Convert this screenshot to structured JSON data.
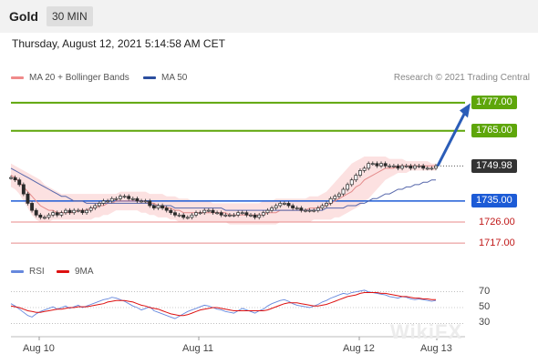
{
  "header": {
    "instrument": "Gold",
    "timeframe": "30 MIN"
  },
  "timestamp": "Thursday, August 12, 2021 5:14:58 AM CET",
  "legend": {
    "bollinger": "MA 20 + Bollinger Bands",
    "ma50": "MA 50",
    "credit": "Research © 2021 Trading Central"
  },
  "rsi_legend": {
    "rsi": "RSI",
    "ma9": "9MA"
  },
  "colors": {
    "resistance": "#5ea60a",
    "support": "#1c5bd6",
    "minor_support": "#e88a8a",
    "ma50": "#5566aa",
    "ma20": "#e48a8a",
    "bands": "#fcdcdc",
    "arrow": "#2b5db8",
    "rsi": "#6688dd",
    "rsi_ma": "#dd1111",
    "candle_up": "#2a2a2a",
    "candle_down": "#2a2a2a"
  },
  "watermark": "WikiFX",
  "chart_data": [
    {
      "type": "line",
      "name": "price",
      "ylim": [
        1712,
        1782
      ],
      "x_axis_labels": [
        "Aug 10",
        "Aug 11",
        "Aug 12",
        "Aug 13"
      ],
      "levels": [
        {
          "value": 1777.0,
          "label": "1777.00",
          "kind": "resistance"
        },
        {
          "value": 1765.0,
          "label": "1765.00",
          "kind": "resistance"
        },
        {
          "value": 1749.98,
          "label": "1749.98",
          "kind": "last"
        },
        {
          "value": 1735.0,
          "label": "1735.00",
          "kind": "support"
        },
        {
          "value": 1726.0,
          "label": "1726.00",
          "kind": "minor-support"
        },
        {
          "value": 1717.0,
          "label": "1717.00",
          "kind": "minor-support"
        }
      ],
      "close": [
        1745,
        1744,
        1742,
        1738,
        1734,
        1731,
        1729,
        1728,
        1728,
        1729,
        1730,
        1729,
        1730,
        1731,
        1730,
        1731,
        1731,
        1730,
        1731,
        1732,
        1733,
        1734,
        1735,
        1735,
        1736,
        1736,
        1737,
        1737,
        1736,
        1736,
        1735,
        1735,
        1735,
        1733,
        1732,
        1733,
        1732,
        1731,
        1730,
        1729,
        1729,
        1728,
        1728,
        1729,
        1730,
        1730,
        1731,
        1731,
        1730,
        1730,
        1729,
        1729,
        1729,
        1729,
        1730,
        1730,
        1729,
        1729,
        1728,
        1729,
        1730,
        1731,
        1732,
        1733,
        1734,
        1734,
        1733,
        1732,
        1732,
        1731,
        1731,
        1731,
        1731,
        1732,
        1733,
        1734,
        1736,
        1737,
        1738,
        1740,
        1742,
        1744,
        1746,
        1748,
        1749,
        1751,
        1751,
        1750,
        1751,
        1750,
        1750,
        1750,
        1749,
        1750,
        1750,
        1749,
        1750,
        1750,
        1749,
        1749,
        1749,
        1750
      ],
      "ma20": [
        1746,
        1745,
        1743,
        1741,
        1739,
        1737,
        1735,
        1733,
        1732,
        1731,
        1731,
        1730,
        1730,
        1730,
        1730,
        1730,
        1731,
        1731,
        1731,
        1732,
        1732,
        1733,
        1733,
        1734,
        1734,
        1735,
        1735,
        1735,
        1735,
        1735,
        1735,
        1735,
        1735,
        1734,
        1734,
        1733,
        1733,
        1732,
        1732,
        1731,
        1731,
        1730,
        1730,
        1730,
        1730,
        1730,
        1730,
        1730,
        1730,
        1730,
        1730,
        1730,
        1729,
        1729,
        1729,
        1729,
        1729,
        1729,
        1729,
        1729,
        1729,
        1730,
        1730,
        1730,
        1731,
        1731,
        1731,
        1731,
        1731,
        1731,
        1731,
        1732,
        1732,
        1732,
        1733,
        1733,
        1734,
        1735,
        1736,
        1737,
        1738,
        1739,
        1741,
        1742,
        1744,
        1745,
        1746,
        1747,
        1748,
        1749,
        1749,
        1749,
        1750,
        1750,
        1750,
        1750,
        1750,
        1750,
        1750,
        1750,
        1750,
        1750
      ],
      "ma50": [
        1749,
        1748,
        1747,
        1746,
        1745,
        1744,
        1743,
        1742,
        1741,
        1740,
        1739,
        1738,
        1737,
        1737,
        1736,
        1735,
        1735,
        1735,
        1734,
        1734,
        1734,
        1734,
        1734,
        1734,
        1734,
        1734,
        1734,
        1734,
        1734,
        1734,
        1734,
        1734,
        1734,
        1734,
        1733,
        1733,
        1733,
        1733,
        1733,
        1732,
        1732,
        1732,
        1732,
        1732,
        1732,
        1732,
        1732,
        1732,
        1732,
        1732,
        1732,
        1731,
        1731,
        1731,
        1731,
        1731,
        1731,
        1731,
        1731,
        1731,
        1731,
        1731,
        1731,
        1731,
        1731,
        1731,
        1731,
        1731,
        1731,
        1731,
        1731,
        1731,
        1731,
        1731,
        1731,
        1732,
        1732,
        1732,
        1732,
        1732,
        1733,
        1733,
        1733,
        1734,
        1734,
        1735,
        1736,
        1736,
        1737,
        1738,
        1738,
        1739,
        1740,
        1740,
        1741,
        1741,
        1742,
        1742,
        1743,
        1743,
        1744,
        1744
      ],
      "upper_band": [
        1751,
        1750,
        1749,
        1748,
        1747,
        1746,
        1745,
        1744,
        1742,
        1741,
        1740,
        1739,
        1738,
        1738,
        1738,
        1738,
        1738,
        1738,
        1738,
        1738,
        1738,
        1738,
        1738,
        1738,
        1738,
        1738,
        1739,
        1739,
        1739,
        1739,
        1739,
        1739,
        1739,
        1738,
        1738,
        1738,
        1738,
        1737,
        1737,
        1737,
        1736,
        1736,
        1736,
        1735,
        1735,
        1735,
        1735,
        1735,
        1734,
        1734,
        1734,
        1734,
        1734,
        1734,
        1734,
        1734,
        1734,
        1734,
        1734,
        1734,
        1735,
        1735,
        1735,
        1736,
        1736,
        1736,
        1736,
        1736,
        1736,
        1736,
        1736,
        1737,
        1737,
        1737,
        1738,
        1739,
        1741,
        1743,
        1745,
        1747,
        1749,
        1751,
        1752,
        1753,
        1754,
        1754,
        1754,
        1754,
        1754,
        1754,
        1753,
        1753,
        1753,
        1753,
        1752,
        1752,
        1752,
        1752,
        1752,
        1752,
        1751,
        1751
      ],
      "lower_band": [
        1741,
        1740,
        1738,
        1735,
        1732,
        1729,
        1727,
        1726,
        1726,
        1726,
        1727,
        1727,
        1727,
        1727,
        1727,
        1727,
        1727,
        1727,
        1727,
        1727,
        1728,
        1728,
        1729,
        1729,
        1730,
        1731,
        1731,
        1731,
        1731,
        1731,
        1731,
        1730,
        1730,
        1729,
        1729,
        1728,
        1728,
        1728,
        1727,
        1727,
        1726,
        1726,
        1726,
        1726,
        1726,
        1726,
        1726,
        1726,
        1726,
        1726,
        1726,
        1726,
        1725,
        1725,
        1725,
        1725,
        1725,
        1725,
        1725,
        1725,
        1725,
        1725,
        1725,
        1725,
        1726,
        1726,
        1726,
        1726,
        1726,
        1726,
        1726,
        1726,
        1727,
        1727,
        1727,
        1727,
        1727,
        1728,
        1728,
        1729,
        1730,
        1731,
        1732,
        1733,
        1735,
        1736,
        1738,
        1740,
        1742,
        1744,
        1745,
        1746,
        1747,
        1747,
        1747,
        1748,
        1748,
        1748,
        1748,
        1748,
        1748,
        1748
      ],
      "forecast_arrow": {
        "from": 1750,
        "to": 1776
      }
    },
    {
      "type": "line",
      "name": "rsi",
      "ylim": [
        20,
        80
      ],
      "y_ticks": [
        70,
        50,
        30
      ],
      "rsi": [
        55,
        52,
        48,
        44,
        40,
        38,
        42,
        45,
        47,
        49,
        51,
        48,
        50,
        52,
        49,
        51,
        53,
        50,
        52,
        54,
        56,
        58,
        60,
        61,
        63,
        62,
        60,
        58,
        55,
        52,
        50,
        47,
        49,
        51,
        46,
        44,
        42,
        40,
        38,
        36,
        39,
        42,
        45,
        47,
        49,
        51,
        53,
        52,
        50,
        48,
        47,
        45,
        44,
        43,
        46,
        49,
        47,
        45,
        43,
        46,
        48,
        52,
        55,
        57,
        59,
        60,
        58,
        55,
        53,
        52,
        51,
        50,
        52,
        54,
        57,
        59,
        62,
        64,
        66,
        68,
        67,
        69,
        70,
        71,
        72,
        70,
        69,
        68,
        67,
        66,
        64,
        63,
        62,
        64,
        63,
        61,
        60,
        61,
        60,
        59,
        58,
        59
      ],
      "ma9": [
        52,
        51,
        50,
        48,
        46,
        45,
        44,
        44,
        45,
        46,
        47,
        48,
        48,
        49,
        50,
        50,
        51,
        51,
        51,
        52,
        53,
        54,
        55,
        57,
        58,
        59,
        59,
        59,
        58,
        57,
        55,
        53,
        52,
        50,
        49,
        48,
        46,
        44,
        42,
        41,
        40,
        40,
        41,
        43,
        45,
        47,
        48,
        49,
        50,
        50,
        49,
        48,
        47,
        46,
        46,
        46,
        46,
        46,
        46,
        46,
        46,
        47,
        49,
        51,
        53,
        55,
        56,
        56,
        56,
        55,
        54,
        53,
        52,
        52,
        53,
        54,
        56,
        58,
        60,
        62,
        64,
        65,
        66,
        68,
        69,
        69,
        69,
        69,
        68,
        68,
        67,
        66,
        65,
        64,
        64,
        63,
        62,
        62,
        61,
        61,
        60,
        60
      ]
    }
  ]
}
